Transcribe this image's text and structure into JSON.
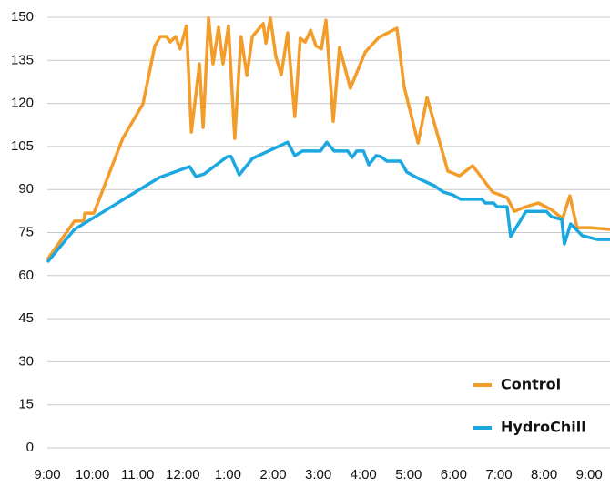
{
  "chart_data": {
    "type": "line",
    "xlim": [
      0,
      12.46
    ],
    "xticks": [
      {
        "value": 0,
        "label": "9:00"
      },
      {
        "value": 1,
        "label": "10:00"
      },
      {
        "value": 2,
        "label": "11:00"
      },
      {
        "value": 3,
        "label": "12:00"
      },
      {
        "value": 4,
        "label": "1:00"
      },
      {
        "value": 5,
        "label": "2:00"
      },
      {
        "value": 6,
        "label": "3:00"
      },
      {
        "value": 7,
        "label": "4:00"
      },
      {
        "value": 8,
        "label": "5:00"
      },
      {
        "value": 9,
        "label": "6:00"
      },
      {
        "value": 10,
        "label": "7:00"
      },
      {
        "value": 11,
        "label": "8:00"
      },
      {
        "value": 12,
        "label": "9:00"
      }
    ],
    "ylim": [
      0,
      150
    ],
    "yticks": [
      0,
      15,
      30,
      45,
      60,
      75,
      90,
      105,
      120,
      135,
      150
    ],
    "grid": true,
    "legend": "lower right",
    "series": [
      {
        "name": "Control",
        "color": "#f39c2a",
        "x": [
          0,
          0.6,
          0.81,
          0.83,
          1.03,
          1.67,
          2.12,
          2.38,
          2.5,
          2.64,
          2.72,
          2.84,
          2.94,
          3.08,
          3.19,
          3.37,
          3.45,
          3.57,
          3.67,
          3.79,
          3.89,
          4.01,
          4.15,
          4.29,
          4.42,
          4.54,
          4.78,
          4.84,
          4.94,
          5.06,
          5.18,
          5.32,
          5.48,
          5.6,
          5.71,
          5.83,
          5.95,
          6.07,
          6.17,
          6.33,
          6.47,
          6.71,
          7.04,
          7.34,
          7.74,
          7.9,
          8.21,
          8.41,
          8.87,
          9.13,
          9.42,
          9.86,
          10.18,
          10.34,
          10.54,
          10.87,
          11.15,
          11.41,
          11.57,
          11.73,
          12.02,
          12.46
        ],
        "values": [
          65.6,
          79,
          79,
          81.8,
          81.8,
          107.8,
          119.9,
          140,
          143.3,
          143.3,
          141.4,
          143.3,
          139,
          147,
          110,
          133.8,
          111.6,
          149.7,
          133.8,
          146.5,
          133.8,
          147,
          107.8,
          143.3,
          129.7,
          143.3,
          147.8,
          141,
          149.7,
          136.3,
          130,
          144.6,
          115.4,
          142.7,
          141.4,
          145.5,
          140,
          139,
          149,
          113.8,
          139.5,
          125.3,
          137.9,
          143,
          146.2,
          125.9,
          106.2,
          122,
          96.4,
          94.8,
          98.3,
          89.1,
          87.2,
          82.4,
          83.7,
          85.3,
          83.1,
          79.9,
          87.8,
          76.7,
          76.7,
          76.1
        ]
      },
      {
        "name": "HydroChill",
        "color": "#1ba8e0",
        "x": [
          0,
          0.6,
          2.48,
          3.15,
          3.29,
          3.47,
          3.99,
          4.07,
          4.25,
          4.54,
          5.32,
          5.48,
          5.65,
          6.05,
          6.19,
          6.35,
          6.65,
          6.75,
          6.85,
          7.0,
          7.12,
          7.28,
          7.38,
          7.52,
          7.82,
          7.96,
          8.21,
          8.57,
          8.77,
          8.97,
          9.15,
          9.62,
          9.7,
          9.88,
          9.96,
          10.18,
          10.26,
          10.6,
          11.05,
          11.17,
          11.39,
          11.45,
          11.59,
          11.85,
          12.18,
          12.46
        ],
        "values": [
          64.7,
          76.1,
          94.2,
          98,
          94.5,
          95.4,
          101.5,
          101.5,
          95.1,
          100.8,
          106.5,
          101.8,
          103.4,
          103.4,
          106.5,
          103.4,
          103.4,
          101.2,
          103.4,
          103.4,
          98.6,
          101.8,
          101.5,
          99.9,
          99.9,
          96.1,
          93.9,
          91.3,
          89.1,
          88.2,
          86.6,
          86.6,
          85.3,
          85.3,
          84,
          84,
          73.6,
          82.4,
          82.4,
          80.5,
          79.6,
          71,
          78,
          73.9,
          72.6,
          72.6
        ]
      }
    ]
  }
}
